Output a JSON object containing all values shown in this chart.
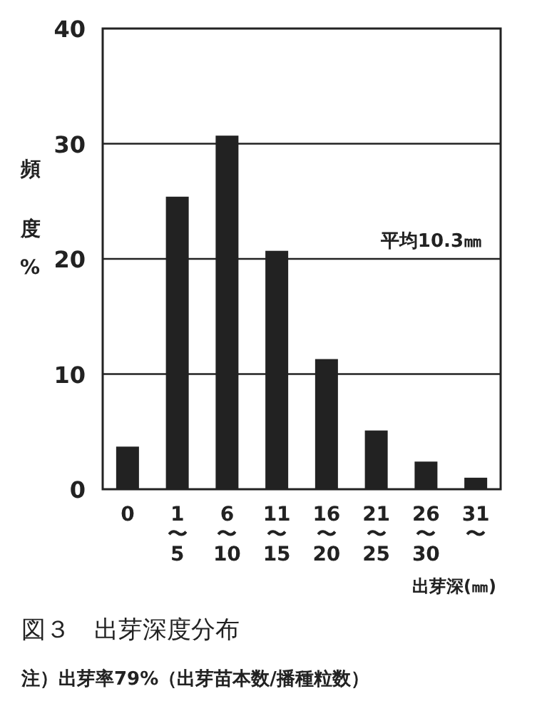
{
  "chart_data": {
    "type": "bar",
    "title": "図３　出芽深度分布",
    "ylabel": "頻度%",
    "xlabel": "出芽深(㎜)",
    "annotations": [
      "平均10.3㎜",
      "注）出芽率79%（出芽苗本数/播種粒数）"
    ],
    "categories": [
      "0",
      "1\n〜\n5",
      "6\n〜\n10",
      "11\n〜\n15",
      "16\n〜\n20",
      "21\n〜\n25",
      "26\n〜\n30",
      "31\n〜"
    ],
    "values": [
      3.7,
      25.4,
      30.7,
      20.7,
      11.3,
      5.1,
      2.4,
      1.0
    ],
    "color": "#222222",
    "ylim": [
      0,
      40
    ],
    "yticks": [
      0,
      10,
      20,
      30,
      40
    ],
    "grid": "y"
  }
}
